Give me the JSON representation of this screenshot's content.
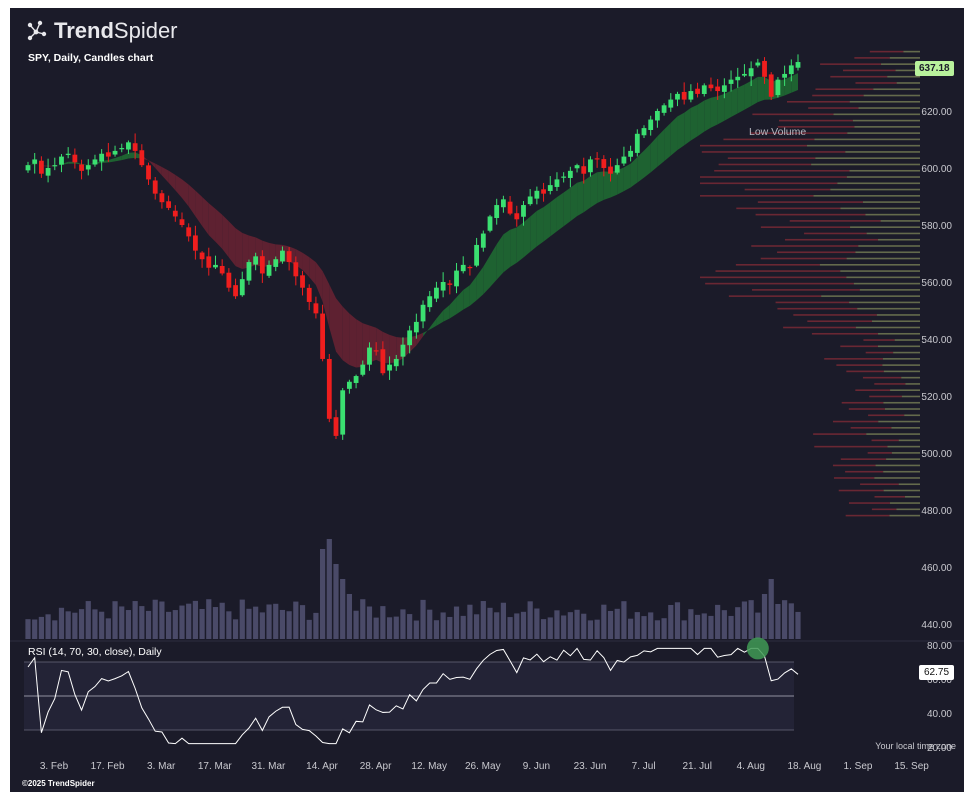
{
  "brand": {
    "name_bold": "Trend",
    "name_light": "Spider"
  },
  "chart_title": "SPY, Daily, Candles chart",
  "rsi_title": "RSI (14, 70, 30, close), Daily",
  "annotation": "Low Volume",
  "timezone_note": "Your local time zone",
  "copyright": "©2025 TrendSpider",
  "last_price_label": "637.18",
  "rsi_value_label": "62.75",
  "colors": {
    "background": "#1b1b29",
    "up": "#3be071",
    "down": "#ef1e1e",
    "cloud_up": "#1f6e33",
    "cloud_down": "#6a2232",
    "volume": "#4a4a68",
    "rsi_line": "#ffffff",
    "badge": "#b9f29c"
  },
  "chart_data": [
    {
      "type": "candlestick",
      "title": "SPY, Daily, Candles chart",
      "y_ticks": [
        "620.00",
        "600.00",
        "580.00",
        "560.00",
        "540.00",
        "520.00",
        "500.00",
        "480.00",
        "460.00",
        "440.00"
      ],
      "x_ticks": [
        "3. Feb",
        "17. Feb",
        "3. Mar",
        "17. Mar",
        "31. Mar",
        "14. Apr",
        "28. Apr",
        "12. May",
        "26. May",
        "9. Jun",
        "23. Jun",
        "7. Jul",
        "21. Jul",
        "4. Aug",
        "18. Aug",
        "1. Sep",
        "15. Sep"
      ],
      "ylim": [
        435,
        645
      ],
      "last_price": 637.18,
      "closes_approx": [
        601,
        603,
        598,
        600,
        601,
        604,
        605,
        602,
        599,
        601,
        603,
        605,
        604,
        606,
        607,
        609,
        606,
        601,
        596,
        591,
        588,
        586,
        583,
        580,
        576,
        571,
        568,
        565,
        566,
        563,
        558,
        555,
        561,
        567,
        569,
        563,
        566,
        568,
        571,
        567,
        562,
        558,
        553,
        549,
        533,
        512,
        506,
        522,
        525,
        527,
        531,
        537,
        536,
        528,
        531,
        533,
        538,
        543,
        546,
        552,
        555,
        558,
        560,
        559,
        564,
        566,
        565,
        573,
        577,
        583,
        587,
        589,
        584,
        582,
        587,
        590,
        592,
        591,
        594,
        596,
        597,
        599,
        601,
        598,
        603,
        603,
        600,
        598,
        601,
        604,
        606,
        612,
        614,
        617,
        620,
        622,
        624,
        626,
        624,
        627,
        626,
        629,
        628,
        627,
        629,
        631,
        632,
        633,
        635,
        637,
        632,
        625,
        631,
        633,
        636,
        637.18
      ],
      "volume_profile": "horizontal volume-at-price bars on right, red/olive split"
    },
    {
      "type": "line",
      "title": "RSI (14, 70, 30, close), Daily",
      "y_ticks": [
        "80.00",
        "60.00",
        "40.00",
        "20.00"
      ],
      "ylim": [
        18,
        82
      ],
      "levels": [
        70,
        50,
        30
      ],
      "last_value": 62.75
    }
  ]
}
